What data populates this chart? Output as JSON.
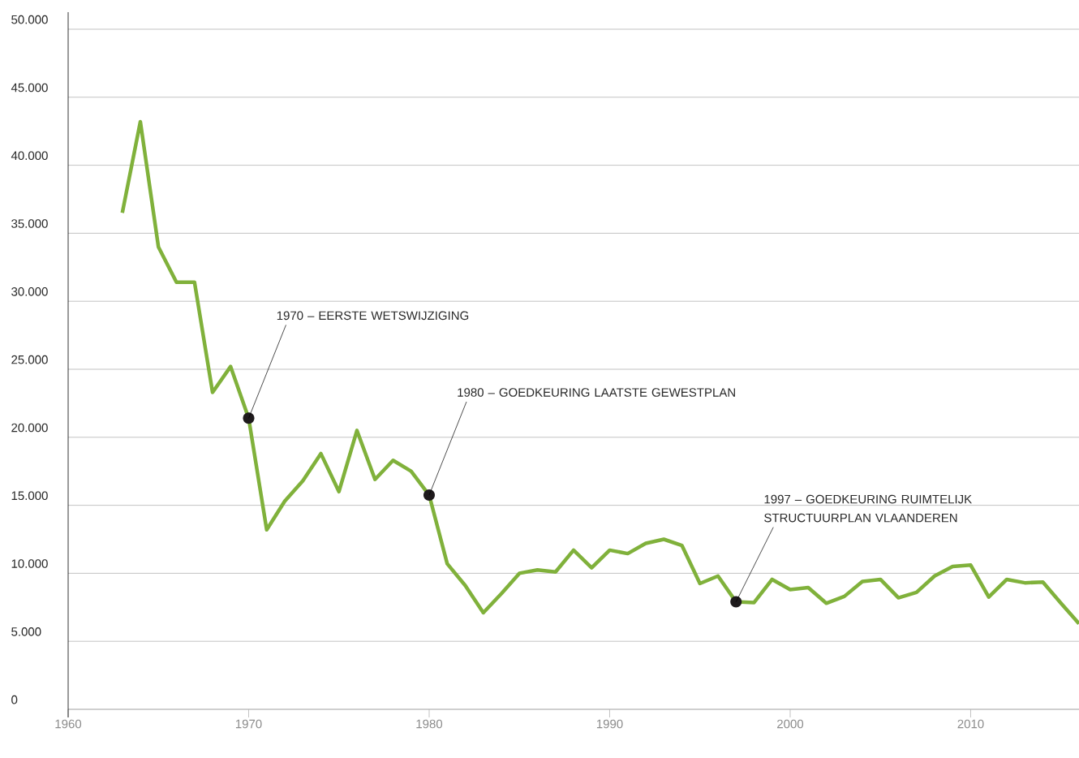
{
  "chart_data": {
    "type": "line",
    "x": [
      1963,
      1964,
      1965,
      1966,
      1967,
      1968,
      1969,
      1970,
      1971,
      1972,
      1973,
      1974,
      1975,
      1976,
      1977,
      1978,
      1979,
      1980,
      1981,
      1982,
      1983,
      1984,
      1985,
      1986,
      1987,
      1988,
      1989,
      1990,
      1991,
      1992,
      1993,
      1994,
      1995,
      1996,
      1997,
      1998,
      1999,
      2000,
      2001,
      2002,
      2003,
      2004,
      2005,
      2006,
      2007,
      2008,
      2009,
      2010,
      2011,
      2012,
      2013,
      2014,
      2015,
      2016
    ],
    "series": [
      {
        "color": "#80b13b",
        "values": [
          36500,
          43200,
          34000,
          31400,
          31400,
          23300,
          25200,
          21400,
          13200,
          15300,
          16800,
          18800,
          16000,
          20500,
          16900,
          18300,
          17500,
          15750,
          10700,
          9100,
          7100,
          8500,
          10000,
          10250,
          10100,
          11700,
          10400,
          11700,
          11450,
          12200,
          12500,
          12050,
          9250,
          9800,
          7900,
          7850,
          9550,
          8800,
          8950,
          7800,
          8300,
          9400,
          9550,
          8200,
          8600,
          9800,
          10500,
          10600,
          8250,
          9550,
          9300,
          9350,
          7800,
          6300
        ]
      }
    ],
    "xlim": [
      1960,
      2016
    ],
    "ylim": [
      0,
      50000
    ],
    "xticks": [
      1960,
      1970,
      1980,
      1990,
      2000,
      2010
    ],
    "yticks": [
      {
        "value": 0,
        "label": "0"
      },
      {
        "value": 5000,
        "label": "5.000"
      },
      {
        "value": 10000,
        "label": "10.000"
      },
      {
        "value": 15000,
        "label": "15.000"
      },
      {
        "value": 20000,
        "label": "20.000"
      },
      {
        "value": 25000,
        "label": "25.000"
      },
      {
        "value": 30000,
        "label": "30.000"
      },
      {
        "value": 35000,
        "label": "35.000"
      },
      {
        "value": 40000,
        "label": "40.000"
      },
      {
        "value": 45000,
        "label": "45.000"
      },
      {
        "value": 50000,
        "label": "50.000"
      }
    ],
    "grid": "y",
    "marker": "none",
    "line_style": "solid",
    "annotations": [
      {
        "text": "1970 – EERSTE WETSWIJZIGING",
        "x": 1970,
        "y": 21400
      },
      {
        "text": "1980 – GOEDKEURING LAATSTE GEWESTPLAN",
        "x": 1980,
        "y": 15750
      },
      {
        "text": "1997 – GOEDKEURING RUIMTELIJK STRUCTUURPLAN VLAANDEREN",
        "x": 1997,
        "y": 7900
      }
    ]
  }
}
